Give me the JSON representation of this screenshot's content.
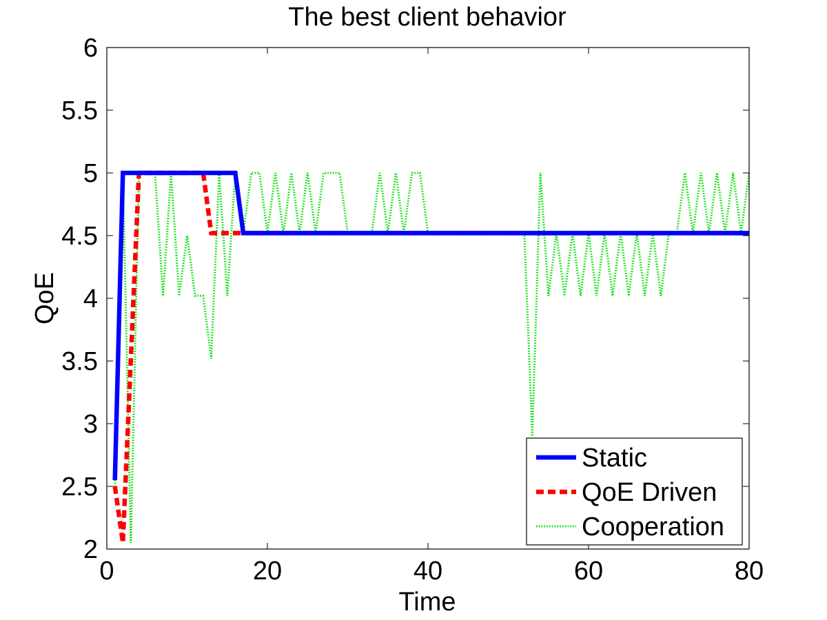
{
  "chart_data": {
    "type": "line",
    "title": "The best client behavior",
    "xlabel": "Time",
    "ylabel": "QoE",
    "xlim": [
      0,
      80
    ],
    "ylim": [
      2,
      6
    ],
    "xticks": [
      0,
      20,
      40,
      60,
      80
    ],
    "yticks": [
      2,
      2.5,
      3,
      3.5,
      4,
      4.5,
      5,
      5.5,
      6
    ],
    "yticklabels": [
      "2",
      "2.5",
      "3",
      "3.5",
      "4",
      "4.5",
      "5",
      "5.5",
      "6"
    ],
    "grid": false,
    "legend_position": "bottom-right",
    "series": [
      {
        "name": "Static",
        "color": "#0000ff",
        "style": "solid",
        "x": [
          1,
          2,
          16,
          17,
          80
        ],
        "y": [
          2.55,
          5.0,
          5.0,
          4.52,
          4.52
        ]
      },
      {
        "name": "QoE Driven",
        "color": "#ff0000",
        "style": "dashed",
        "x": [
          1,
          2,
          4,
          12,
          13,
          80
        ],
        "y": [
          2.5,
          2.05,
          5.0,
          5.0,
          4.52,
          4.52
        ]
      },
      {
        "name": "Cooperation",
        "color": "#00e000",
        "style": "dotted",
        "x": [
          1,
          2,
          3,
          4,
          5,
          6,
          7,
          8,
          9,
          10,
          11,
          12,
          13,
          14,
          15,
          16,
          17,
          18,
          19,
          20,
          21,
          22,
          23,
          24,
          25,
          26,
          27,
          28,
          29,
          30,
          31,
          32,
          33,
          34,
          35,
          36,
          37,
          38,
          39,
          40,
          41,
          42,
          43,
          44,
          45,
          46,
          47,
          48,
          49,
          50,
          51,
          52,
          53,
          54,
          55,
          56,
          57,
          58,
          59,
          60,
          61,
          62,
          63,
          64,
          65,
          66,
          67,
          68,
          69,
          70,
          71,
          72,
          73,
          74,
          75,
          76,
          77,
          78,
          79,
          80
        ],
        "y": [
          2.5,
          5.0,
          2.05,
          5.0,
          5.0,
          5.0,
          4.02,
          5.0,
          4.02,
          4.5,
          4.02,
          4.02,
          3.52,
          5.0,
          4.02,
          5.0,
          4.52,
          5.0,
          5.0,
          4.52,
          5.0,
          4.52,
          5.0,
          4.52,
          5.0,
          4.52,
          5.0,
          5.0,
          5.0,
          4.52,
          4.52,
          4.52,
          4.52,
          5.0,
          4.52,
          5.0,
          4.52,
          5.0,
          5.0,
          4.52,
          4.52,
          4.52,
          4.52,
          4.52,
          4.52,
          4.52,
          4.52,
          4.52,
          4.52,
          4.52,
          4.52,
          4.52,
          2.9,
          5.0,
          4.02,
          4.52,
          4.02,
          4.52,
          4.02,
          4.52,
          4.02,
          4.52,
          4.02,
          4.52,
          4.02,
          4.52,
          4.02,
          4.52,
          4.02,
          4.52,
          4.52,
          5.0,
          4.52,
          5.0,
          4.52,
          5.0,
          4.52,
          5.0,
          4.52,
          5.0
        ]
      }
    ]
  }
}
